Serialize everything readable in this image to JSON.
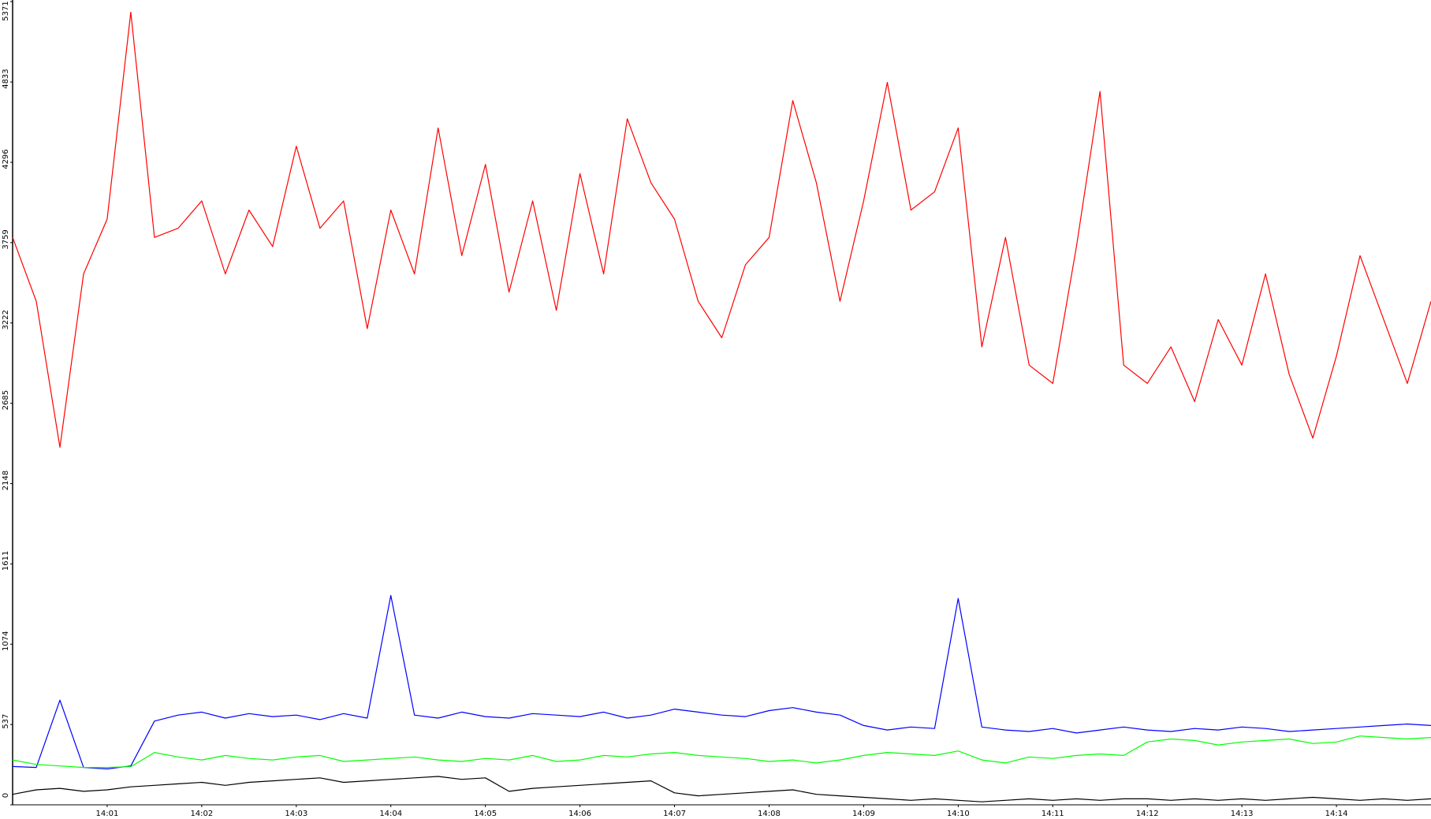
{
  "chart_data": {
    "type": "line",
    "categories": [
      null,
      null,
      null,
      null,
      "14:01",
      null,
      null,
      null,
      "14:02",
      null,
      null,
      null,
      "14:03",
      null,
      null,
      null,
      "14:04",
      null,
      null,
      null,
      "14:05",
      null,
      null,
      null,
      "14:06",
      null,
      null,
      null,
      "14:07",
      null,
      null,
      null,
      "14:08",
      null,
      null,
      null,
      "14:09",
      null,
      null,
      null,
      "14:10",
      null,
      null,
      null,
      "14:11",
      null,
      null,
      null,
      "14:12",
      null,
      null,
      null,
      "14:13",
      null,
      null,
      null,
      "14:14",
      null,
      null,
      null,
      null
    ],
    "ylim": [
      0,
      5371
    ],
    "yticks": [
      0,
      537,
      1074,
      1611,
      2148,
      2685,
      3222,
      3759,
      4296,
      4833,
      5371
    ],
    "series": [
      {
        "color": "#0000ff",
        "values": [
          256,
          250,
          700,
          250,
          240,
          260,
          560,
          600,
          620,
          580,
          610,
          590,
          600,
          570,
          610,
          580,
          1400,
          600,
          580,
          620,
          590,
          580,
          610,
          600,
          590,
          620,
          580,
          600,
          640,
          620,
          600,
          590,
          630,
          650,
          620,
          600,
          530,
          500,
          520,
          510,
          1380,
          520,
          500,
          490,
          510,
          480,
          500,
          520,
          500,
          490,
          510,
          500,
          520,
          510,
          490,
          500,
          510,
          520,
          530,
          540,
          530
        ]
      },
      {
        "color": "#00ff00",
        "values": [
          300,
          270,
          260,
          250,
          250,
          255,
          350,
          320,
          300,
          330,
          310,
          300,
          320,
          330,
          290,
          300,
          310,
          320,
          300,
          290,
          310,
          300,
          330,
          290,
          300,
          330,
          320,
          340,
          350,
          330,
          320,
          310,
          290,
          300,
          280,
          300,
          330,
          350,
          340,
          330,
          360,
          300,
          280,
          320,
          310,
          330,
          340,
          330,
          420,
          440,
          430,
          400,
          420,
          430,
          440,
          410,
          420,
          460,
          450,
          440,
          450
        ]
      },
      {
        "color": "#000000",
        "values": [
          70,
          100,
          110,
          90,
          100,
          120,
          130,
          140,
          150,
          130,
          150,
          160,
          170,
          180,
          150,
          160,
          170,
          180,
          190,
          170,
          180,
          90,
          110,
          120,
          130,
          140,
          150,
          160,
          80,
          60,
          70,
          80,
          90,
          100,
          70,
          60,
          50,
          40,
          30,
          40,
          30,
          20,
          30,
          40,
          30,
          40,
          30,
          40,
          40,
          30,
          40,
          30,
          40,
          30,
          40,
          50,
          40,
          30,
          40,
          30,
          40
        ]
      },
      {
        "color": "#ff0000",
        "values": [
          3794,
          3367,
          2391,
          3550,
          3916,
          5300,
          3794,
          3855,
          4038,
          3550,
          3977,
          3733,
          4404,
          3855,
          4038,
          3184,
          3977,
          3550,
          4526,
          3672,
          4282,
          3428,
          4038,
          3306,
          4221,
          3550,
          4587,
          4160,
          3916,
          3367,
          3123,
          3611,
          3794,
          4709,
          4160,
          3367,
          4038,
          4831,
          3977,
          4099,
          4526,
          3062,
          3794,
          2940,
          2818,
          3733,
          4770,
          2940,
          2818,
          3062,
          2696,
          3245,
          2940,
          3550,
          2879,
          2452,
          3001,
          3672,
          3245,
          2818,
          3367
        ]
      }
    ]
  }
}
